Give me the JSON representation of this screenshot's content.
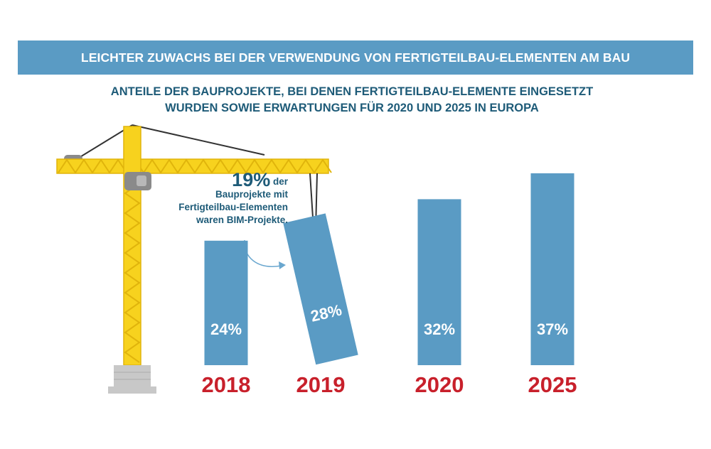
{
  "header": {
    "banner_title": "LEICHTER ZUWACHS BEI DER VERWENDUNG VON FERTIGTEILBAU-ELEMENTEN AM BAU",
    "subtitle_line1": "ANTEILE DER BAUPROJEKTE, BEI DENEN FERTIGTEILBAU-ELEMENTE EINGESETZT",
    "subtitle_line2": "WURDEN SOWIE ERWARTUNGEN FÜR 2020 UND 2025 IN EUROPA"
  },
  "callout": {
    "percent": "19%",
    "suffix": "der",
    "line2": "Bauprojekte mit",
    "line3": "Fertigteilbau-Elementen",
    "line4": "waren BIM-Projekte."
  },
  "colors": {
    "banner": "#5a9bc4",
    "bar": "#5a9bc4",
    "bar_text": "#ffffff",
    "year_text": "#c8202b",
    "crane": "#f7d21e",
    "crane_outline": "#e0b40c",
    "title_text": "#1e5b78",
    "base": "#c8c8c8"
  },
  "chart_data": {
    "type": "bar",
    "title": "ANTEILE DER BAUPROJEKTE, BEI DENEN FERTIGTEILBAU-ELEMENTE EINGESETZT WURDEN SOWIE ERWARTUNGEN FÜR 2020 UND 2025 IN EUROPA",
    "categories": [
      "2018",
      "2019",
      "2020",
      "2025"
    ],
    "values": [
      24,
      28,
      32,
      37
    ],
    "value_labels": [
      "24%",
      "28%",
      "32%",
      "37%"
    ],
    "unit": "%",
    "ylim": [
      0,
      40
    ],
    "grid": false,
    "legend": "none",
    "annotation": "19% der Bauprojekte mit Fertigteilbau-Elementen waren BIM-Projekte."
  }
}
